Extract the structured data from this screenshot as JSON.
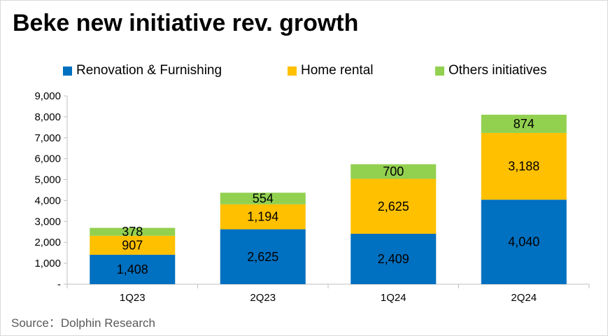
{
  "title": "Beke new initiative rev. growth",
  "source": "Source：Dolphin Research",
  "chart_data": {
    "type": "bar",
    "stacked": true,
    "title": "Beke new initiative rev. growth",
    "xlabel": "",
    "ylabel": "",
    "categories": [
      "1Q23",
      "2Q23",
      "1Q24",
      "2Q24"
    ],
    "ylim": [
      0,
      9000
    ],
    "yticks": [
      0,
      1000,
      2000,
      3000,
      4000,
      5000,
      6000,
      7000,
      8000,
      9000
    ],
    "ytick_labels": [
      "-",
      "1,000",
      "2,000",
      "3,000",
      "4,000",
      "5,000",
      "6,000",
      "7,000",
      "8,000",
      "9,000"
    ],
    "grid": false,
    "legend_position": "top",
    "series": [
      {
        "name": "Renovation & Furnishing",
        "color": "#0070c0",
        "values": [
          1408,
          2625,
          2409,
          4040
        ],
        "labels": [
          "1,408",
          "2,625",
          "2,409",
          "4,040"
        ]
      },
      {
        "name": "Home rental",
        "color": "#ffc000",
        "values": [
          907,
          1194,
          2625,
          3188
        ],
        "labels": [
          "907",
          "1,194",
          "2,625",
          "3,188"
        ]
      },
      {
        "name": "Others initiatives",
        "color": "#92d050",
        "values": [
          378,
          554,
          700,
          874
        ],
        "labels": [
          "378",
          "554",
          "700",
          "874"
        ]
      }
    ]
  }
}
